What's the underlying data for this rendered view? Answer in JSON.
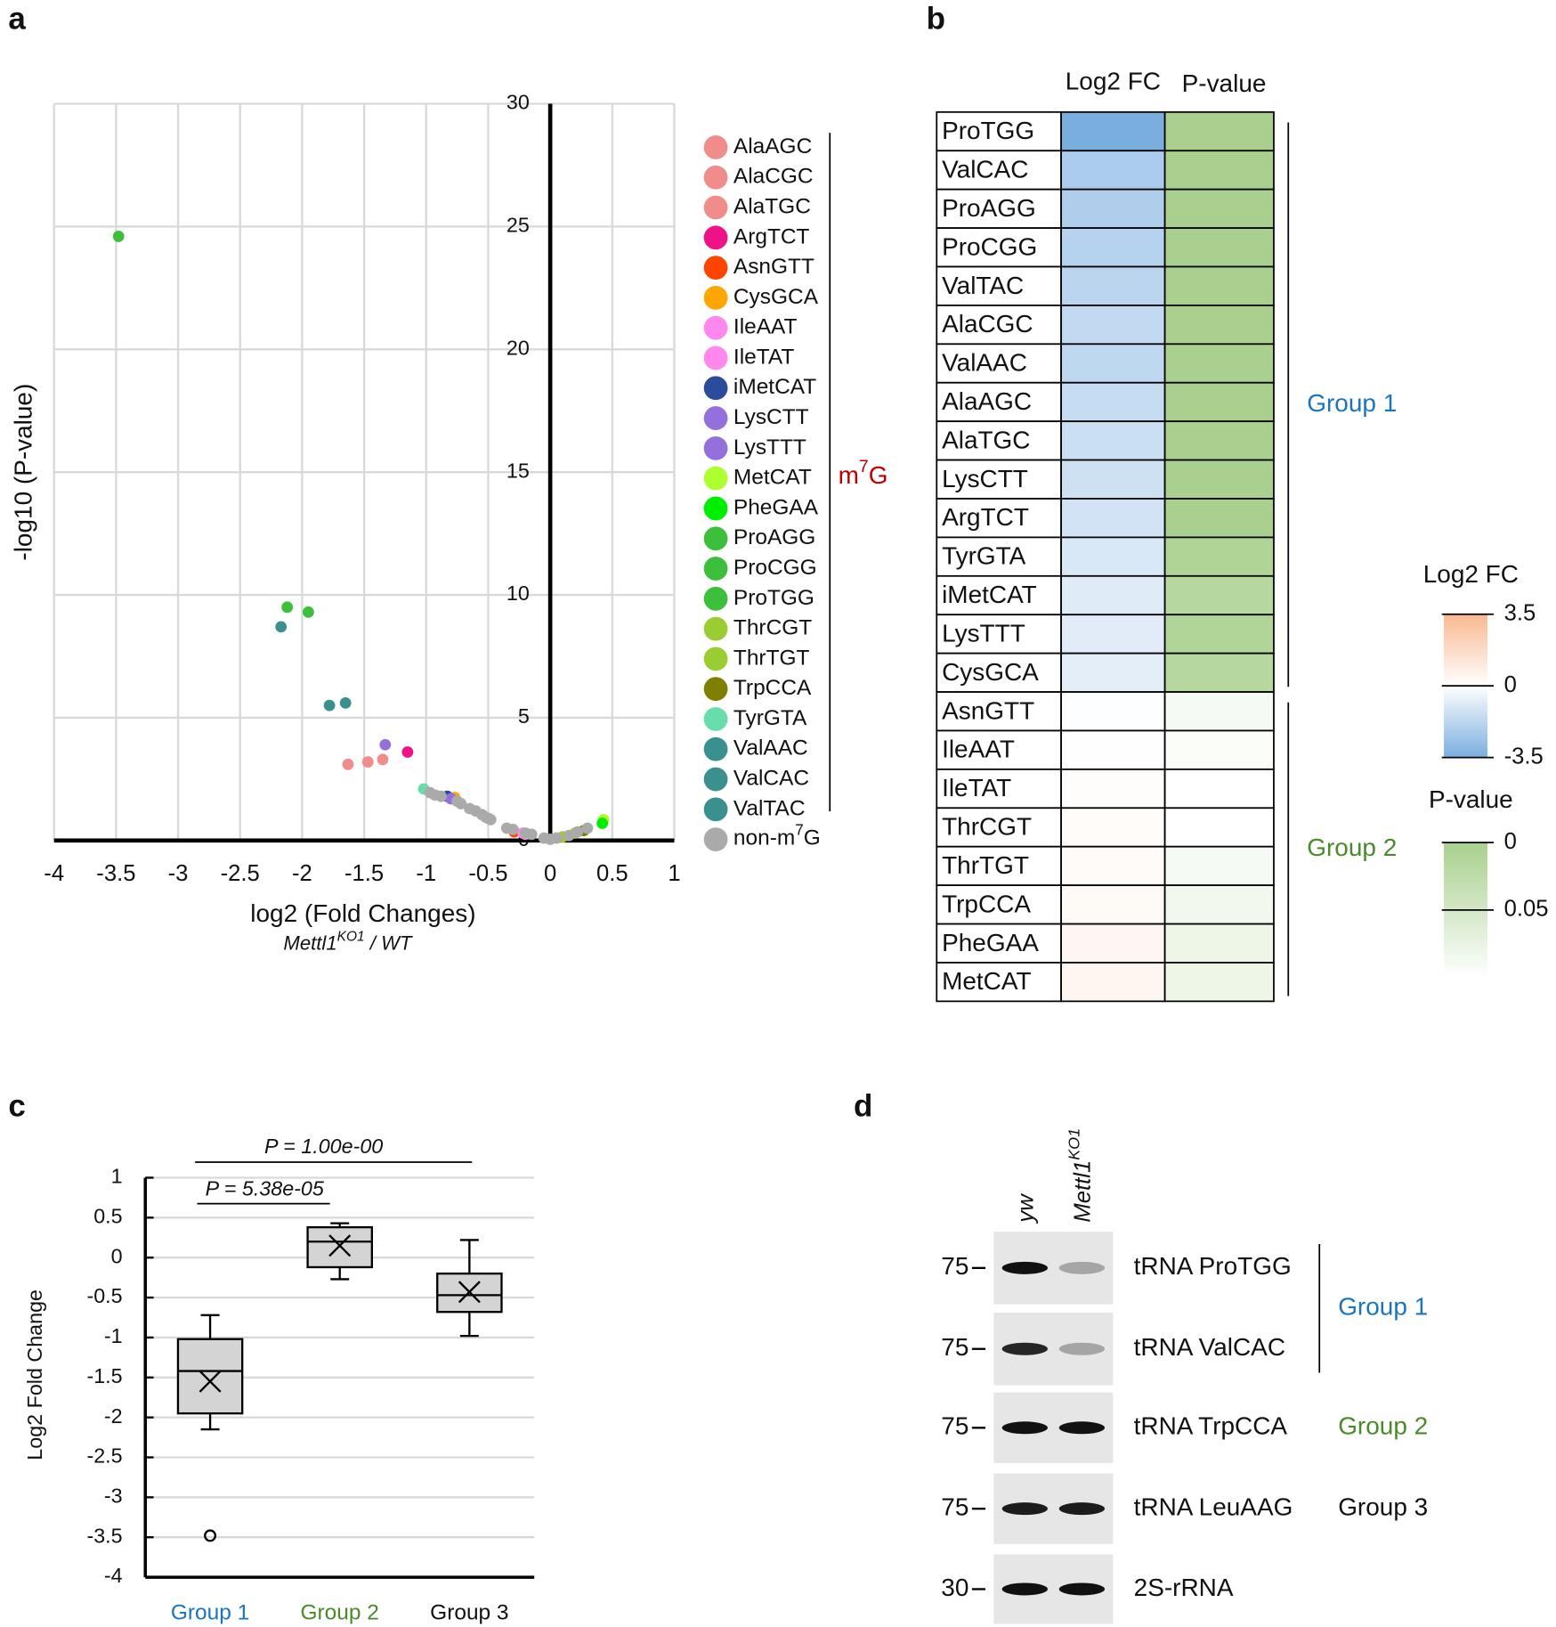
{
  "chart_data": [
    {
      "type": "scatter",
      "panel": "a",
      "xlabel": "log2 (Fold Changes)",
      "xlabel_sub": [
        "Mettl1",
        "KO1",
        " / WT"
      ],
      "ylabel": "-log10 (P-value)",
      "xlim": [
        -4,
        1
      ],
      "xticks": [
        -4,
        -3.5,
        -3,
        -2.5,
        -2,
        -1.5,
        -1,
        -0.5,
        0,
        0.5,
        1
      ],
      "ylim": [
        0,
        30
      ],
      "yticks": [
        0,
        5,
        10,
        15,
        20,
        25,
        30
      ],
      "grid": true,
      "legend_bracket_label": [
        "m",
        "7",
        "G"
      ],
      "legend_bracket_color": "#c00000",
      "series": [
        {
          "name": "AlaAGC",
          "color": "#f08c8c",
          "x": [
            -1.63
          ],
          "y": [
            3.1
          ]
        },
        {
          "name": "AlaCGC",
          "color": "#f08c8c",
          "x": [
            -1.47
          ],
          "y": [
            3.2
          ]
        },
        {
          "name": "AlaTGC",
          "color": "#f08c8c",
          "x": [
            -1.35
          ],
          "y": [
            3.3
          ]
        },
        {
          "name": "ArgTCT",
          "color": "#ee1188",
          "x": [
            -1.15
          ],
          "y": [
            3.6
          ]
        },
        {
          "name": "AsnGTT",
          "color": "#ff4400",
          "x": [
            -0.29
          ],
          "y": [
            0.35
          ]
        },
        {
          "name": "CysGCA",
          "color": "#ffa500",
          "x": [
            -0.77
          ],
          "y": [
            1.75
          ]
        },
        {
          "name": "IleAAT",
          "color": "#ff88ee",
          "x": [
            -0.22
          ],
          "y": [
            0.3
          ]
        },
        {
          "name": "IleTAT",
          "color": "#ff88ee",
          "x": [
            -0.2
          ],
          "y": [
            0.25
          ]
        },
        {
          "name": "iMetCAT",
          "color": "#2b4c9b",
          "x": [
            -0.83
          ],
          "y": [
            1.8
          ]
        },
        {
          "name": "LysCTT",
          "color": "#9370db",
          "x": [
            -1.33
          ],
          "y": [
            3.9
          ]
        },
        {
          "name": "LysTTT",
          "color": "#9370db",
          "x": [
            -0.8
          ],
          "y": [
            1.7
          ]
        },
        {
          "name": "MetCAT",
          "color": "#adff2f",
          "x": [
            0.43
          ],
          "y": [
            0.85
          ]
        },
        {
          "name": "PheGAA",
          "color": "#00ee00",
          "x": [
            0.42
          ],
          "y": [
            0.7
          ]
        },
        {
          "name": "ProAGG",
          "color": "#3cc03c",
          "x": [
            -2.12
          ],
          "y": [
            9.5
          ]
        },
        {
          "name": "ProCGG",
          "color": "#3cc03c",
          "x": [
            -1.95
          ],
          "y": [
            9.3
          ]
        },
        {
          "name": "ProTGG",
          "color": "#3cc03c",
          "x": [
            -3.48
          ],
          "y": [
            24.6
          ]
        },
        {
          "name": "ThrCGT",
          "color": "#9acd32",
          "x": [
            0.1
          ],
          "y": [
            0.15
          ]
        },
        {
          "name": "ThrTGT",
          "color": "#9acd32",
          "x": [
            0.2
          ],
          "y": [
            0.3
          ]
        },
        {
          "name": "TrpCCA",
          "color": "#808000",
          "x": [
            0.27
          ],
          "y": [
            0.4
          ]
        },
        {
          "name": "TyrGTA",
          "color": "#66ddaa",
          "x": [
            -1.02
          ],
          "y": [
            2.1
          ]
        },
        {
          "name": "ValAAC",
          "color": "#3a8f8f",
          "x": [
            -2.17
          ],
          "y": [
            8.7
          ]
        },
        {
          "name": "ValCAC",
          "color": "#3a8f8f",
          "x": [
            -1.78
          ],
          "y": [
            5.5
          ]
        },
        {
          "name": "ValTAC",
          "color": "#3a8f8f",
          "x": [
            -1.65
          ],
          "y": [
            5.6
          ]
        },
        {
          "name": [
            "non-m",
            "7",
            "G"
          ],
          "color": "#aaaaaa",
          "x": [
            -0.97,
            -0.93,
            -0.88,
            -0.75,
            -0.72,
            -0.65,
            -0.6,
            -0.55,
            -0.52,
            -0.5,
            -0.48,
            -0.35,
            -0.3,
            -0.2,
            -0.15,
            -0.05,
            0,
            0.05,
            0.15,
            0.22,
            0.3
          ],
          "y": [
            1.95,
            1.85,
            1.8,
            1.6,
            1.5,
            1.3,
            1.2,
            1.05,
            0.95,
            0.9,
            0.85,
            0.5,
            0.45,
            0.3,
            0.25,
            0.1,
            0.05,
            0.1,
            0.2,
            0.35,
            0.5
          ]
        }
      ]
    },
    {
      "type": "heatmap",
      "panel": "b",
      "columns": [
        "Log2 FC",
        "P-value"
      ],
      "groups": [
        {
          "label": "Group 1",
          "color": "#1a75bc",
          "rows": [
            {
              "name": "ProTGG",
              "log2fc": -3.5,
              "pvalue": 0.001
            },
            {
              "name": "ValCAC",
              "log2fc": -2.2,
              "pvalue": 0.001
            },
            {
              "name": "ProAGG",
              "log2fc": -2.1,
              "pvalue": 0.001
            },
            {
              "name": "ProCGG",
              "log2fc": -1.95,
              "pvalue": 0.001
            },
            {
              "name": "ValTAC",
              "log2fc": -1.8,
              "pvalue": 0.001
            },
            {
              "name": "AlaCGC",
              "log2fc": -1.6,
              "pvalue": 0.001
            },
            {
              "name": "ValAAC",
              "log2fc": -1.7,
              "pvalue": 0.001
            },
            {
              "name": "AlaAGC",
              "log2fc": -1.5,
              "pvalue": 0.001
            },
            {
              "name": "AlaTGC",
              "log2fc": -1.4,
              "pvalue": 0.001
            },
            {
              "name": "LysCTT",
              "log2fc": -1.3,
              "pvalue": 0.001
            },
            {
              "name": "ArgTCT",
              "log2fc": -1.2,
              "pvalue": 0.001
            },
            {
              "name": "TyrGTA",
              "log2fc": -1.0,
              "pvalue": 0.008
            },
            {
              "name": "iMetCAT",
              "log2fc": -0.85,
              "pvalue": 0.016
            },
            {
              "name": "LysTTT",
              "log2fc": -0.8,
              "pvalue": 0.01
            },
            {
              "name": "CysGCA",
              "log2fc": -0.75,
              "pvalue": 0.016
            }
          ]
        },
        {
          "label": "Group 2",
          "color": "#4a8a2a",
          "rows": [
            {
              "name": "AsnGTT",
              "log2fc": -0.05,
              "pvalue": 0.09
            },
            {
              "name": "IleAAT",
              "log2fc": -0.03,
              "pvalue": 0.095
            },
            {
              "name": "IleTAT",
              "log2fc": 0.1,
              "pvalue": 0.12
            },
            {
              "name": "ThrCGT",
              "log2fc": 0.15,
              "pvalue": 0.11
            },
            {
              "name": "ThrTGT",
              "log2fc": 0.2,
              "pvalue": 0.09
            },
            {
              "name": "TrpCCA",
              "log2fc": 0.27,
              "pvalue": 0.085
            },
            {
              "name": "PheGAA",
              "log2fc": 0.42,
              "pvalue": 0.08
            },
            {
              "name": "MetCAT",
              "log2fc": 0.43,
              "pvalue": 0.08
            }
          ]
        }
      ],
      "colorbars": [
        {
          "title": "Log2 FC",
          "clim": [
            -3.5,
            3.5
          ],
          "ticks": [
            3.5,
            0,
            -3.5
          ],
          "colors": [
            "#7aaee0",
            "#ffffff",
            "#f8b890"
          ]
        },
        {
          "title": "P-value",
          "clim": [
            0,
            0.1
          ],
          "ticks": [
            0,
            0.05
          ],
          "colors": [
            "#a8d08d",
            "#ffffff"
          ]
        }
      ]
    },
    {
      "type": "box",
      "panel": "c",
      "ylabel": "Log2 Fold Change",
      "categories": [
        "Group 1",
        "Group 2",
        "Group 3"
      ],
      "category_colors": [
        "#1a75bc",
        "#4a8a2a",
        "#111111"
      ],
      "ylim": [
        -4,
        1
      ],
      "yticks": [
        -4,
        -3.5,
        -3,
        -2.5,
        -2,
        -1.5,
        -1,
        -0.5,
        0,
        0.5,
        1
      ],
      "grid": true,
      "boxes": [
        {
          "whislo": -2.15,
          "q1": -1.95,
          "med": -1.42,
          "q3": -1.02,
          "whishi": -0.72,
          "mean": -1.55,
          "fliers": [
            -3.48
          ]
        },
        {
          "whislo": -0.27,
          "q1": -0.12,
          "med": 0.2,
          "q3": 0.38,
          "whishi": 0.43,
          "mean": 0.15,
          "fliers": []
        },
        {
          "whislo": -0.98,
          "q1": -0.68,
          "med": -0.47,
          "q3": -0.2,
          "whishi": 0.22,
          "mean": -0.43,
          "fliers": []
        }
      ],
      "annotations": [
        "P = 1.00e-00",
        "P = 5.38e-05"
      ]
    }
  ],
  "blot": {
    "panel": "d",
    "lanes": [
      [
        "yw"
      ],
      [
        "Mettl1",
        "KO1"
      ]
    ],
    "groups": [
      {
        "label": "Group 1",
        "color": "#1a75bc",
        "rows": [
          {
            "marker": 75,
            "label": "tRNA ProTGG"
          },
          {
            "marker": 75,
            "label": "tRNA ValCAC"
          }
        ]
      },
      {
        "label": "Group 2",
        "color": "#4a8a2a",
        "rows": [
          {
            "marker": 75,
            "label": "tRNA TrpCCA"
          }
        ]
      },
      {
        "label": "Group 3",
        "color": "#111111",
        "rows": [
          {
            "marker": 75,
            "label": "tRNA LeuAAG"
          }
        ]
      },
      {
        "rows": [
          {
            "marker": 30,
            "label": "2S-rRNA"
          }
        ]
      }
    ]
  }
}
